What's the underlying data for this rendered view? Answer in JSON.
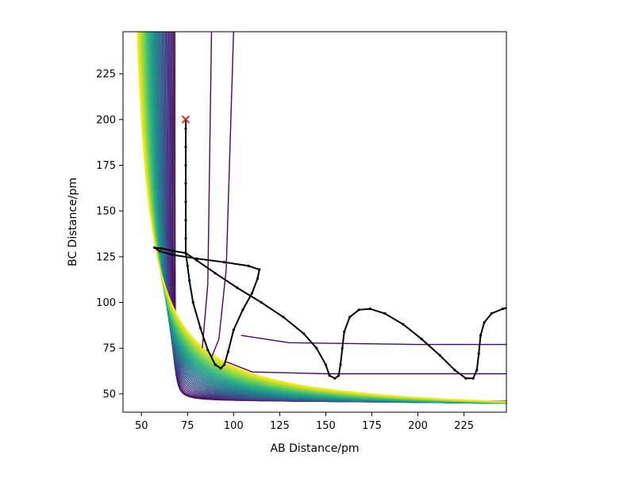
{
  "chart_data": {
    "type": "contour",
    "title": "",
    "xlabel": "AB Distance/pm",
    "ylabel": "BC Distance/pm",
    "xlim": [
      40,
      248
    ],
    "ylim": [
      40,
      248
    ],
    "x_ticks": [
      50,
      75,
      100,
      125,
      150,
      175,
      200,
      225
    ],
    "y_ticks": [
      50,
      75,
      100,
      125,
      150,
      175,
      200,
      225
    ],
    "colormap": "viridis",
    "contour_levels": 40,
    "grid": false,
    "legend": "none",
    "start_marker": {
      "x": 74,
      "y": 200,
      "symbol": "x",
      "color": "#e31a1c"
    },
    "trajectory_color": "#000000",
    "trajectory": [
      [
        74,
        200
      ],
      [
        74,
        195
      ],
      [
        74,
        185
      ],
      [
        74,
        175
      ],
      [
        74,
        165
      ],
      [
        74,
        155
      ],
      [
        74,
        145
      ],
      [
        74,
        135
      ],
      [
        74,
        127
      ],
      [
        68,
        128
      ],
      [
        61,
        129.5
      ],
      [
        57,
        130
      ],
      [
        60,
        128
      ],
      [
        67,
        126
      ],
      [
        80,
        124
      ],
      [
        95,
        122
      ],
      [
        108,
        120
      ],
      [
        114,
        118
      ],
      [
        113,
        113
      ],
      [
        110,
        105
      ],
      [
        105,
        96
      ],
      [
        100,
        85
      ],
      [
        97,
        73
      ],
      [
        95,
        66
      ],
      [
        93,
        64
      ],
      [
        90,
        66
      ],
      [
        86,
        74
      ],
      [
        82,
        86
      ],
      [
        78,
        100
      ],
      [
        76,
        112
      ],
      [
        75,
        120
      ],
      [
        74,
        127
      ],
      [
        80,
        123
      ],
      [
        90,
        116
      ],
      [
        102,
        108
      ],
      [
        115,
        100
      ],
      [
        127,
        92
      ],
      [
        138,
        83
      ],
      [
        145,
        75
      ],
      [
        150,
        66
      ],
      [
        152,
        60
      ],
      [
        155,
        58.5
      ],
      [
        157,
        60
      ],
      [
        158,
        66
      ],
      [
        159,
        75
      ],
      [
        160,
        84
      ],
      [
        163,
        92
      ],
      [
        168,
        96
      ],
      [
        174,
        96.5
      ],
      [
        182,
        94
      ],
      [
        192,
        88
      ],
      [
        202,
        80
      ],
      [
        212,
        71
      ],
      [
        220,
        63
      ],
      [
        226,
        58.5
      ],
      [
        230,
        58.5
      ],
      [
        232,
        63
      ],
      [
        233,
        72
      ],
      [
        234,
        82
      ],
      [
        236,
        89
      ],
      [
        240,
        94
      ],
      [
        246,
        96.5
      ],
      [
        248,
        97
      ]
    ]
  }
}
